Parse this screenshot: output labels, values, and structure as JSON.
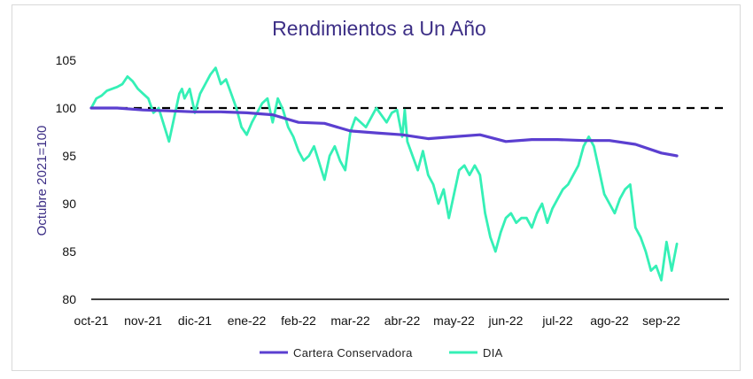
{
  "chart_data": {
    "type": "line",
    "title": "Rendimientos a Un Año",
    "xlabel": "",
    "ylabel": "Octubre 2021=100",
    "ylim": [
      80,
      105
    ],
    "yticks": [
      80,
      85,
      90,
      95,
      100,
      105
    ],
    "grid": false,
    "legend_position": "bottom",
    "categories": [
      "oct-21",
      "nov-21",
      "dic-21",
      "ene-22",
      "feb-22",
      "mar-22",
      "abr-22",
      "may-22",
      "jun-22",
      "jul-22",
      "ago-22",
      "sep-22"
    ],
    "reference_line": {
      "value": 100,
      "style": "dashed",
      "color": "#000000"
    },
    "series": [
      {
        "name": "Cartera Conservadora",
        "color": "#5b3fd0",
        "x": [
          0,
          0.5,
          1.0,
          1.5,
          2.0,
          2.5,
          3.0,
          3.5,
          4.0,
          4.5,
          5.0,
          5.5,
          6.0,
          6.5,
          7.0,
          7.5,
          8.0,
          8.5,
          9.0,
          9.5,
          10.0,
          10.5,
          11.0,
          11.3
        ],
        "values": [
          100.0,
          100.0,
          99.8,
          99.7,
          99.6,
          99.6,
          99.5,
          99.3,
          98.5,
          98.4,
          97.6,
          97.4,
          97.2,
          96.8,
          97.0,
          97.2,
          96.5,
          96.7,
          96.7,
          96.6,
          96.6,
          96.2,
          95.3,
          95.0
        ]
      },
      {
        "name": "DIA",
        "color": "#35f0b6",
        "x": [
          0,
          0.1,
          0.2,
          0.3,
          0.5,
          0.6,
          0.7,
          0.8,
          0.9,
          1.0,
          1.1,
          1.2,
          1.3,
          1.5,
          1.6,
          1.7,
          1.75,
          1.8,
          1.9,
          2.0,
          2.1,
          2.2,
          2.3,
          2.4,
          2.5,
          2.6,
          2.7,
          2.8,
          2.9,
          3.0,
          3.1,
          3.2,
          3.3,
          3.4,
          3.5,
          3.6,
          3.7,
          3.8,
          3.9,
          4.0,
          4.1,
          4.2,
          4.3,
          4.5,
          4.6,
          4.7,
          4.8,
          4.9,
          5.0,
          5.1,
          5.3,
          5.5,
          5.7,
          5.8,
          5.9,
          6.0,
          6.05,
          6.1,
          6.2,
          6.3,
          6.4,
          6.5,
          6.6,
          6.7,
          6.8,
          6.9,
          7.0,
          7.1,
          7.2,
          7.3,
          7.4,
          7.5,
          7.6,
          7.7,
          7.8,
          7.9,
          8.0,
          8.1,
          8.2,
          8.3,
          8.4,
          8.5,
          8.6,
          8.7,
          8.8,
          8.9,
          9.0,
          9.1,
          9.2,
          9.3,
          9.4,
          9.5,
          9.6,
          9.7,
          9.8,
          9.9,
          10.0,
          10.1,
          10.2,
          10.3,
          10.4,
          10.5,
          10.6,
          10.7,
          10.8,
          10.9,
          11.0,
          11.1,
          11.2,
          11.3
        ],
        "values": [
          100.0,
          101.0,
          101.3,
          101.8,
          102.2,
          102.5,
          103.3,
          102.8,
          102.0,
          101.5,
          101.0,
          99.5,
          100.0,
          96.5,
          99.0,
          101.5,
          102.0,
          101.0,
          102.0,
          99.5,
          101.5,
          102.5,
          103.5,
          104.2,
          102.5,
          103.0,
          101.5,
          100.0,
          98.0,
          97.2,
          98.5,
          99.5,
          100.5,
          101.0,
          98.5,
          101.0,
          99.8,
          98.0,
          97.0,
          95.5,
          94.5,
          95.0,
          96.0,
          92.5,
          95.0,
          96.0,
          94.5,
          93.5,
          97.5,
          99.0,
          98.0,
          100.0,
          98.5,
          99.5,
          99.8,
          97.0,
          99.8,
          96.5,
          95.0,
          93.5,
          95.5,
          93.0,
          92.0,
          90.0,
          91.5,
          88.5,
          91.0,
          93.5,
          94.0,
          93.0,
          94.0,
          93.0,
          89.0,
          86.5,
          85.0,
          87.0,
          88.5,
          89.0,
          88.0,
          88.5,
          88.5,
          87.5,
          89.0,
          90.0,
          88.0,
          89.5,
          90.5,
          91.5,
          92.0,
          93.0,
          94.0,
          96.0,
          97.0,
          96.0,
          93.5,
          91.0,
          90.0,
          89.0,
          90.5,
          91.5,
          92.0,
          87.5,
          86.5,
          85.0,
          83.0,
          83.5,
          82.0,
          86.0,
          83.0,
          85.8
        ]
      }
    ]
  }
}
